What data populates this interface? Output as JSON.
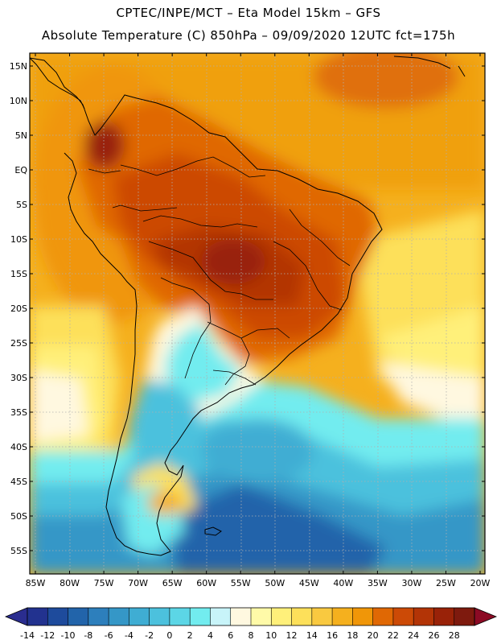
{
  "header": {
    "line1": "CPTEC/INPE/MCT –  Eta Model 15km – GFS",
    "line2": "Absolute Temperature (C) 850hPa – 09/09/2020 12UTC fct=175h"
  },
  "axes": {
    "lat_labels": [
      "15N",
      "10N",
      "5N",
      "EQ",
      "5S",
      "10S",
      "15S",
      "20S",
      "25S",
      "30S",
      "35S",
      "40S",
      "45S",
      "50S",
      "55S"
    ],
    "lat_values": [
      15,
      10,
      5,
      0,
      -5,
      -10,
      -15,
      -20,
      -25,
      -30,
      -35,
      -40,
      -45,
      -50,
      -55
    ],
    "lon_labels": [
      "85W",
      "80W",
      "75W",
      "70W",
      "65W",
      "60W",
      "55W",
      "50W",
      "45W",
      "40W",
      "35W",
      "30W",
      "25W",
      "20W"
    ],
    "lon_values": [
      -85,
      -80,
      -75,
      -70,
      -65,
      -60,
      -55,
      -50,
      -45,
      -40,
      -35,
      -30,
      -25,
      -20
    ]
  },
  "colorbar": {
    "labels": [
      "-14",
      "-12",
      "-10",
      "-8",
      "-6",
      "-4",
      "-2",
      "0",
      "2",
      "4",
      "6",
      "8",
      "10",
      "12",
      "14",
      "16",
      "18",
      "20",
      "22",
      "24",
      "26",
      "28"
    ],
    "under_color": "#2a2d8f",
    "over_color": "#8c0a24",
    "colors": [
      "#22328f",
      "#1e4b9c",
      "#2264aa",
      "#2d7fbc",
      "#3597c7",
      "#3fadd3",
      "#4cc1dd",
      "#5cd6e6",
      "#72ecef",
      "#c8f4f9",
      "#fff8e0",
      "#fffaa8",
      "#fff07a",
      "#fde05a",
      "#f9c940",
      "#f5b01e",
      "#f09608",
      "#e06804",
      "#cc4a06",
      "#b33406",
      "#992208",
      "#7e1a0e"
    ]
  },
  "map_colors": {
    "coast": "#000000",
    "grid": "#b0b0b0"
  }
}
